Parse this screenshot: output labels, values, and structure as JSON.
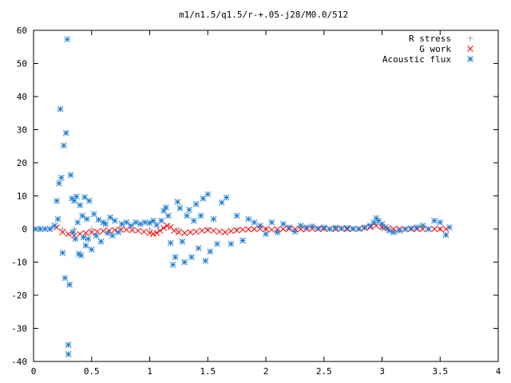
{
  "chart_data": {
    "type": "scatter",
    "title": "m1/n1.5/q1.5/r-+.05-j28/M0.0/512",
    "xlabel": "",
    "ylabel": "",
    "xlim": [
      0,
      4
    ],
    "ylim": [
      -40,
      60
    ],
    "xticks": [
      0,
      0.5,
      1,
      1.5,
      2,
      2.5,
      3,
      3.5,
      4
    ],
    "xtick_labels": [
      "0",
      "0.5",
      "1",
      "1.5",
      "2",
      "2.5",
      "3",
      "3.5",
      "4"
    ],
    "yticks": [
      -40,
      -30,
      -20,
      -10,
      0,
      10,
      20,
      30,
      40,
      50,
      60
    ],
    "ytick_labels": [
      "-40",
      "-30",
      "-20",
      "-10",
      "0",
      "10",
      "20",
      "30",
      "40",
      "50",
      "60"
    ],
    "grid": false,
    "legend_position": "top-right",
    "series": [
      {
        "name": "R stress",
        "marker": "plus",
        "color": "#a0a0a0",
        "x": [
          0.05,
          0.15,
          0.25,
          0.35,
          0.5,
          0.75,
          1.0,
          1.25,
          1.5,
          1.75,
          2.0,
          2.5,
          3.0,
          3.5
        ],
        "y": [
          0,
          0,
          0,
          0,
          0,
          0,
          0,
          0,
          0,
          0,
          0,
          0,
          0,
          0
        ]
      },
      {
        "name": "G work",
        "marker": "cross",
        "color": "#ff0000",
        "x": [
          0.2,
          0.25,
          0.3,
          0.35,
          0.4,
          0.45,
          0.5,
          0.55,
          0.6,
          0.65,
          0.7,
          0.75,
          0.8,
          0.85,
          0.9,
          0.95,
          1.0,
          1.03,
          1.06,
          1.09,
          1.12,
          1.15,
          1.18,
          1.21,
          1.25,
          1.3,
          1.35,
          1.4,
          1.45,
          1.5,
          1.55,
          1.6,
          1.65,
          1.7,
          1.75,
          1.8,
          1.85,
          1.9,
          1.95,
          2.0,
          2.05,
          2.1,
          2.15,
          2.2,
          2.25,
          2.3,
          2.35,
          2.4,
          2.45,
          2.5,
          2.55,
          2.6,
          2.65,
          2.7,
          2.75,
          2.8,
          2.85,
          2.9,
          2.95,
          3.0,
          3.05,
          3.1,
          3.15,
          3.2,
          3.25,
          3.3,
          3.35,
          3.4,
          3.45,
          3.5,
          3.55
        ],
        "y": [
          0.5,
          -1.0,
          -1.5,
          -2.0,
          -1.5,
          -1.2,
          -1.0,
          -0.8,
          -0.6,
          -0.5,
          -0.3,
          -0.2,
          -0.2,
          -0.3,
          -0.5,
          -0.8,
          -1.2,
          -1.5,
          -1.2,
          -0.5,
          0.3,
          1.0,
          0.6,
          -0.5,
          -1.0,
          -1.2,
          -1.0,
          -0.8,
          -0.5,
          -0.3,
          -0.5,
          -0.8,
          -1.0,
          -0.6,
          -0.4,
          -0.2,
          -0.1,
          0.0,
          0.1,
          0.0,
          -0.2,
          -0.1,
          0.0,
          0.1,
          0.0,
          -0.1,
          0.0,
          0.1,
          0.0,
          0.1,
          0.0,
          0.0,
          0.1,
          0.0,
          0.0,
          0.1,
          0.3,
          0.6,
          1.0,
          0.6,
          0.2,
          0.0,
          0.0,
          -0.1,
          0.0,
          0.0,
          0.0,
          0.0,
          0.0,
          0.0,
          0.0
        ]
      },
      {
        "name": "Acoustic flux",
        "marker": "star",
        "color": "#1f7fd2",
        "x": [
          0.02,
          0.06,
          0.1,
          0.14,
          0.18,
          0.2,
          0.21,
          0.22,
          0.23,
          0.24,
          0.25,
          0.26,
          0.27,
          0.28,
          0.29,
          0.3,
          0.3,
          0.31,
          0.32,
          0.33,
          0.34,
          0.35,
          0.36,
          0.37,
          0.38,
          0.39,
          0.4,
          0.41,
          0.42,
          0.43,
          0.44,
          0.45,
          0.46,
          0.47,
          0.48,
          0.5,
          0.52,
          0.54,
          0.56,
          0.58,
          0.6,
          0.62,
          0.64,
          0.66,
          0.68,
          0.7,
          0.73,
          0.76,
          0.8,
          0.84,
          0.88,
          0.92,
          0.96,
          1.0,
          1.03,
          1.06,
          1.1,
          1.12,
          1.14,
          1.16,
          1.18,
          1.2,
          1.22,
          1.24,
          1.26,
          1.28,
          1.3,
          1.32,
          1.34,
          1.36,
          1.38,
          1.4,
          1.42,
          1.44,
          1.46,
          1.48,
          1.5,
          1.52,
          1.55,
          1.58,
          1.62,
          1.66,
          1.7,
          1.75,
          1.8,
          1.85,
          1.9,
          1.95,
          2.0,
          2.05,
          2.1,
          2.15,
          2.2,
          2.25,
          2.3,
          2.35,
          2.4,
          2.45,
          2.5,
          2.55,
          2.6,
          2.65,
          2.7,
          2.75,
          2.8,
          2.85,
          2.9,
          2.93,
          2.95,
          2.97,
          3.0,
          3.03,
          3.06,
          3.1,
          3.15,
          3.2,
          3.25,
          3.3,
          3.35,
          3.4,
          3.45,
          3.5,
          3.55,
          3.58
        ],
        "y": [
          0,
          0,
          0,
          0,
          1,
          8.5,
          3.0,
          13.8,
          36.2,
          15.5,
          -7.2,
          25.2,
          -14.8,
          29.0,
          57.3,
          -35.0,
          -37.8,
          -16.8,
          16.3,
          9.2,
          -1.0,
          8.5,
          -3.0,
          9.8,
          2.0,
          -7.5,
          7.2,
          -8.0,
          4.0,
          -2.5,
          9.6,
          -5.0,
          3.0,
          -3.0,
          8.5,
          -6.2,
          4.5,
          -2.0,
          2.8,
          -3.8,
          2.0,
          1.5,
          -1.2,
          3.5,
          -2.0,
          2.5,
          -1.0,
          1.5,
          2.0,
          1.0,
          2.0,
          1.5,
          2.0,
          1.8,
          2.5,
          1.2,
          2.5,
          5.5,
          6.5,
          4.0,
          -4.2,
          -10.8,
          -8.5,
          8.2,
          6.3,
          -3.8,
          -10.0,
          4.0,
          5.8,
          -8.5,
          2.5,
          7.5,
          -5.8,
          4.0,
          9.2,
          -9.6,
          10.5,
          -6.8,
          3.0,
          -4.5,
          8.0,
          9.5,
          -4.5,
          4.0,
          -3.5,
          3.0,
          2.0,
          1.0,
          -1.5,
          2.0,
          -1.0,
          1.5,
          0.5,
          -0.8,
          1.0,
          0.5,
          0.8,
          0.2,
          0.5,
          0.0,
          0.4,
          0.2,
          0.3,
          0.1,
          0.0,
          0.5,
          1.0,
          2.0,
          3.3,
          2.5,
          1.5,
          0.5,
          -0.5,
          -1.0,
          -0.5,
          0.0,
          0.2,
          0.5,
          1.0,
          0.0,
          2.5,
          2.0,
          -1.8,
          0.5
        ]
      }
    ]
  }
}
